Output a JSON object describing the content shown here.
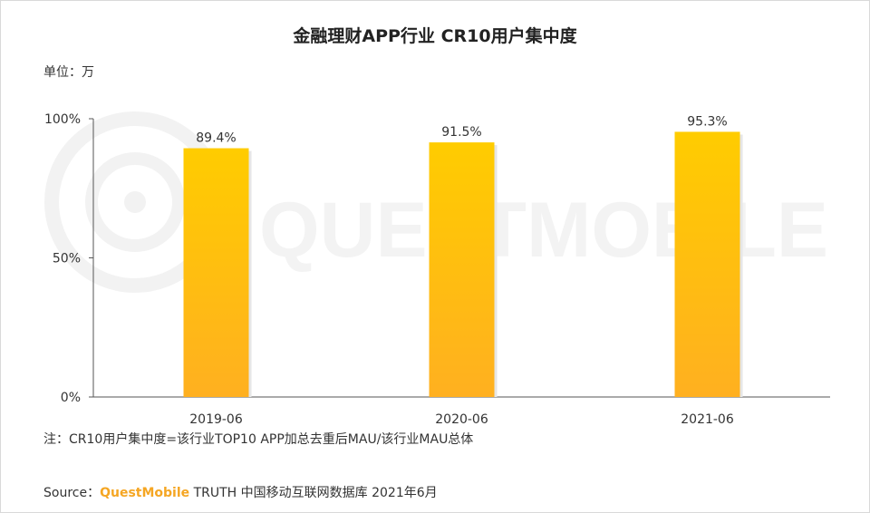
{
  "title": "金融理财APP行业 CR10用户集中度",
  "unit": "单位：万",
  "note": "注：CR10用户集中度=该行业TOP10 APP加总去重后MAU/该行业MAU总体",
  "source": {
    "prefix": "Source：",
    "brand": "QuestMobile",
    "rest": " TRUTH 中国移动互联网数据库 2021年6月"
  },
  "watermark": "QUESTMOBILE",
  "chart_data": {
    "type": "bar",
    "categories": [
      "2019-06",
      "2020-06",
      "2021-06"
    ],
    "values": [
      89.4,
      91.5,
      95.3
    ],
    "value_labels": [
      "89.4%",
      "91.5%",
      "95.3%"
    ],
    "ylim": [
      0,
      100
    ],
    "yticks": [
      {
        "value": 0,
        "label": "0%"
      },
      {
        "value": 50,
        "label": "50%"
      },
      {
        "value": 100,
        "label": "100%"
      }
    ],
    "grid": false,
    "colors": {
      "bar_top": "#ffcc00",
      "bar_bottom": "#ffb020",
      "axis": "#555555"
    }
  }
}
